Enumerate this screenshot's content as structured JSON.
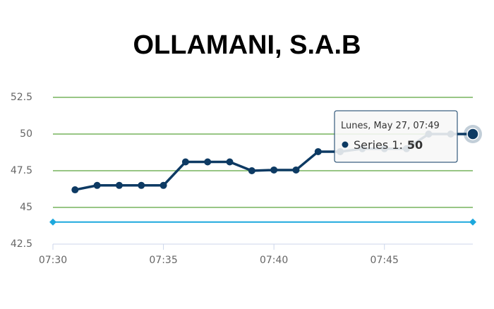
{
  "chart_data": {
    "type": "line",
    "title": "OLLAMANI, S.A.B",
    "x": [
      "07:31",
      "07:32",
      "07:33",
      "07:34",
      "07:35",
      "07:36",
      "07:37",
      "07:38",
      "07:39",
      "07:40",
      "07:41",
      "07:42",
      "07:43",
      "07:44",
      "07:45",
      "07:46",
      "07:47",
      "07:48",
      "07:49"
    ],
    "series": [
      {
        "color": "#0d3a63",
        "values": [
          46.2,
          46.5,
          46.5,
          46.5,
          46.5,
          48.1,
          48.1,
          48.1,
          47.5,
          47.55,
          47.55,
          48.8,
          48.8,
          49,
          49,
          49,
          50,
          50,
          50
        ]
      }
    ],
    "xlim": [
      "07:30",
      "07:49"
    ],
    "xticks": [
      "07:30",
      "07:35",
      "07:40",
      "07:45"
    ],
    "ylim": [
      42.5,
      52.5
    ],
    "yticks": [
      42.5,
      45,
      47.5,
      50,
      52.5
    ],
    "grid": true,
    "grid_color": "#5aa33c",
    "plot_lines": [
      {
        "value": 44,
        "color": "#1ca8dd"
      }
    ],
    "tooltip": {
      "header": "Lunes, May 27, 07:49",
      "label": "Series 1:",
      "point": 18
    }
  }
}
